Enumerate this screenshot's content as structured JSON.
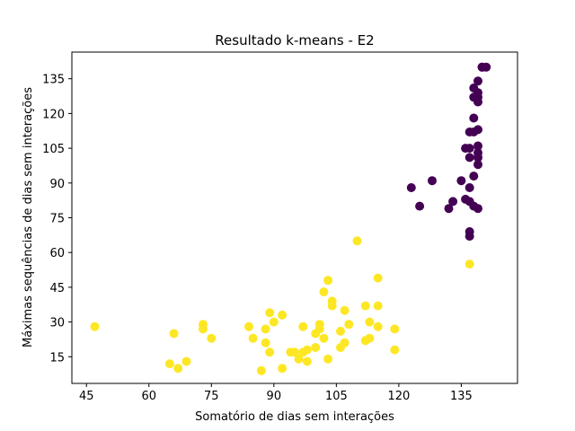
{
  "chart_data": {
    "type": "scatter",
    "title": "Resultado k-means - E2",
    "xlabel": "Somatório de dias sem interações",
    "ylabel": "Máximas sequências de dias sem interações",
    "xlim": [
      41.5,
      148.5
    ],
    "ylim": [
      3.5,
      146.5
    ],
    "xticks": [
      45,
      60,
      75,
      90,
      105,
      120,
      135
    ],
    "yticks": [
      15,
      30,
      45,
      60,
      75,
      90,
      105,
      120,
      135
    ],
    "grid": false,
    "colors": {
      "cluster_0": "#fde725",
      "cluster_1": "#440154"
    },
    "series": [
      {
        "color_key": "cluster_0",
        "points": [
          [
            47,
            28
          ],
          [
            65,
            12
          ],
          [
            66,
            25
          ],
          [
            67,
            10
          ],
          [
            69,
            13
          ],
          [
            73,
            29
          ],
          [
            73,
            27
          ],
          [
            75,
            23
          ],
          [
            84,
            28
          ],
          [
            85,
            23
          ],
          [
            87,
            9
          ],
          [
            88,
            21
          ],
          [
            88,
            27
          ],
          [
            89,
            17
          ],
          [
            89,
            34
          ],
          [
            90,
            30
          ],
          [
            92,
            10
          ],
          [
            92,
            33
          ],
          [
            94,
            17
          ],
          [
            95,
            17
          ],
          [
            96,
            14
          ],
          [
            97,
            28
          ],
          [
            97,
            17
          ],
          [
            98,
            18
          ],
          [
            98,
            13
          ],
          [
            100,
            25
          ],
          [
            100,
            19
          ],
          [
            101,
            27
          ],
          [
            101,
            29
          ],
          [
            102,
            43
          ],
          [
            102,
            23
          ],
          [
            103,
            48
          ],
          [
            103,
            14
          ],
          [
            104,
            39
          ],
          [
            104,
            37
          ],
          [
            106,
            26
          ],
          [
            106,
            19
          ],
          [
            107,
            35
          ],
          [
            107,
            21
          ],
          [
            108,
            29
          ],
          [
            110,
            65
          ],
          [
            112,
            37
          ],
          [
            112,
            22
          ],
          [
            113,
            30
          ],
          [
            113,
            23
          ],
          [
            115,
            49
          ],
          [
            115,
            37
          ],
          [
            115,
            28
          ],
          [
            119,
            27
          ],
          [
            119,
            18
          ],
          [
            137,
            55
          ]
        ]
      },
      {
        "color_key": "cluster_1",
        "points": [
          [
            123,
            88
          ],
          [
            125,
            80
          ],
          [
            128,
            91
          ],
          [
            132,
            79
          ],
          [
            133,
            82
          ],
          [
            135,
            91
          ],
          [
            136,
            83
          ],
          [
            136,
            105
          ],
          [
            137,
            105
          ],
          [
            137,
            101
          ],
          [
            137,
            112
          ],
          [
            137,
            88
          ],
          [
            137,
            82
          ],
          [
            137,
            69
          ],
          [
            137,
            67
          ],
          [
            138,
            131
          ],
          [
            138,
            127
          ],
          [
            138,
            118
          ],
          [
            138,
            112
          ],
          [
            138,
            93
          ],
          [
            138,
            80
          ],
          [
            139,
            134
          ],
          [
            139,
            129
          ],
          [
            139,
            125
          ],
          [
            139,
            127
          ],
          [
            139,
            113
          ],
          [
            139,
            106
          ],
          [
            139,
            103
          ],
          [
            139,
            101
          ],
          [
            139,
            98
          ],
          [
            139,
            79
          ],
          [
            140,
            140
          ],
          [
            140,
            140
          ],
          [
            141,
            140
          ]
        ]
      }
    ]
  }
}
